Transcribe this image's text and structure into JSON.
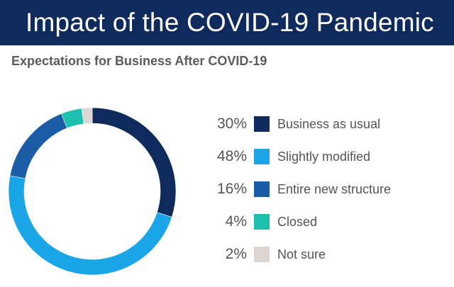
{
  "header": {
    "title": "Impact of the COVID-19 Pandemic"
  },
  "chart_data": {
    "type": "pie",
    "title": "Expectations for Business After COVID-19",
    "donut": true,
    "legend_position": "right",
    "series": [
      {
        "name": "Business as usual",
        "value": 30,
        "label": "30%",
        "color": "#0f2a5c"
      },
      {
        "name": "Slightly modified",
        "value": 48,
        "label": "48%",
        "color": "#1aa5e8"
      },
      {
        "name": "Entire new structure",
        "value": 16,
        "label": "16%",
        "color": "#1a5da6"
      },
      {
        "name": "Closed",
        "value": 4,
        "label": "4%",
        "color": "#1dbfae"
      },
      {
        "name": "Not sure",
        "value": 2,
        "label": "2%",
        "color": "#ddd6d0"
      }
    ]
  }
}
